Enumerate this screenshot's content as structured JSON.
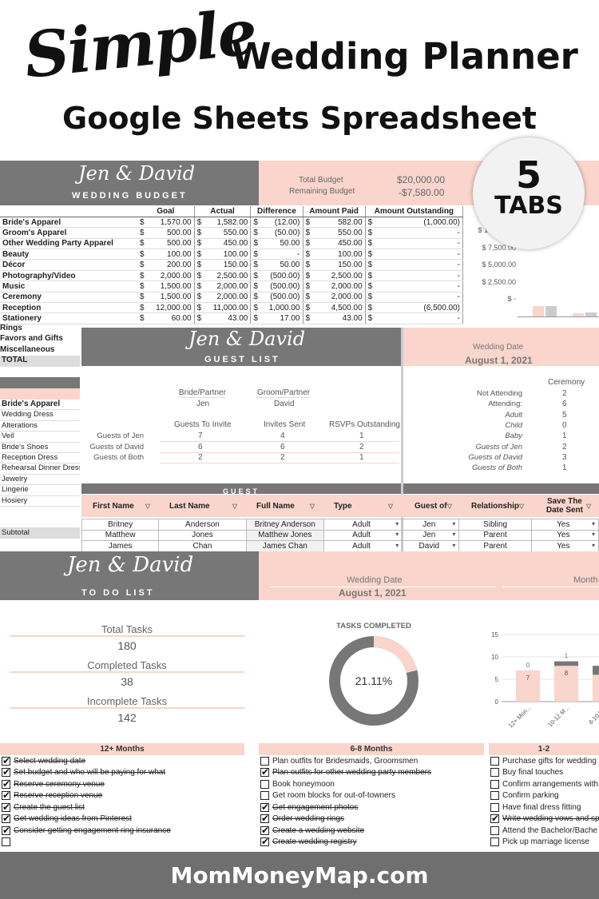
{
  "header": {
    "simple": "Simple",
    "title": "Wedding Planner",
    "subtitle": "Google Sheets Spreadsheet",
    "badge_number": "5",
    "badge_text": "TABS"
  },
  "budget": {
    "names": "Jen & David",
    "sheet_title": "WEDDING BUDGET",
    "total_budget_label": "Total Budget",
    "total_budget_value": "$20,000.00",
    "remaining_label": "Remaining Budget",
    "remaining_value": "-$7,580.00",
    "columns": [
      "Goal",
      "Actual",
      "Difference",
      "Amount Paid",
      "Amount Outstanding"
    ],
    "rows": [
      {
        "cat": "Bride's Apparel",
        "goal": "1,570.00",
        "actual": "1,582.00",
        "diff": "(12.00)",
        "paid": "582.00",
        "out": "(1,000.00)"
      },
      {
        "cat": "Groom's Apparel",
        "goal": "500.00",
        "actual": "550.00",
        "diff": "(50.00)",
        "paid": "550.00",
        "out": "-"
      },
      {
        "cat": "Other Wedding Party Apparel",
        "goal": "500.00",
        "actual": "450.00",
        "diff": "50.00",
        "paid": "450.00",
        "out": "-"
      },
      {
        "cat": "Beauty",
        "goal": "100.00",
        "actual": "100.00",
        "diff": "-",
        "paid": "100.00",
        "out": "-"
      },
      {
        "cat": "Décor",
        "goal": "200.00",
        "actual": "150.00",
        "diff": "50.00",
        "paid": "150.00",
        "out": "-"
      },
      {
        "cat": "Photography/Video",
        "goal": "2,000.00",
        "actual": "2,500.00",
        "diff": "(500.00)",
        "paid": "2,500.00",
        "out": "-"
      },
      {
        "cat": "Music",
        "goal": "1,500.00",
        "actual": "2,000.00",
        "diff": "(500.00)",
        "paid": "2,000.00",
        "out": "-"
      },
      {
        "cat": "Ceremony",
        "goal": "1,500.00",
        "actual": "2,000.00",
        "diff": "(500.00)",
        "paid": "2,000.00",
        "out": "-"
      },
      {
        "cat": "Reception",
        "goal": "12,000.00",
        "actual": "11,000.00",
        "diff": "1,000.00",
        "paid": "4,500.00",
        "out": "(6,500.00)"
      },
      {
        "cat": "Stationery",
        "goal": "60.00",
        "actual": "43.00",
        "diff": "17.00",
        "paid": "43.00",
        "out": "-"
      }
    ],
    "extra_rows": [
      "Rings",
      "Favors and Gifts",
      "Miscellaneous",
      "TOTAL"
    ],
    "chart_ticks": [
      "$ 10,000.00",
      "$ 7,500.00",
      "$ 5,000.00",
      "$ 2,500.00",
      "$ -"
    ]
  },
  "apparel_sidebar": {
    "title": "Bride's Apparel",
    "items": [
      "Wedding Dress",
      "Alterations",
      "Veil",
      "Bride's Shoes",
      "Reception Dress",
      "Rehearsal Dinner Dress",
      "Jewelry",
      "Lingerie",
      "Hosiery"
    ],
    "subtotal": "Subtotal"
  },
  "guest": {
    "names": "Jen & David",
    "sheet_title": "GUEST LIST",
    "wedding_date_label": "Wedding Date",
    "wedding_date": "August 1, 2021",
    "bride_label": "Bride/Partner",
    "groom_label": "Groom/Partner",
    "bride_name": "Jen",
    "groom_name": "David",
    "stat_headers": [
      "Guests To Invite",
      "Invites Sent",
      "RSVPs Outstanding"
    ],
    "stat_rows": [
      {
        "label": "Guests of Jen",
        "a": "7",
        "b": "4",
        "c": "1"
      },
      {
        "label": "Guests of David",
        "a": "6",
        "b": "6",
        "c": "2"
      },
      {
        "label": "Guests of Both",
        "a": "2",
        "b": "2",
        "c": "1"
      }
    ],
    "ceremony_label": "Ceremony",
    "attendance": [
      {
        "label": "Not Attending",
        "value": "2",
        "style": "plain"
      },
      {
        "label": "Attending:",
        "value": "6",
        "style": "plain"
      },
      {
        "label": "Adult",
        "value": "5",
        "style": "italic"
      },
      {
        "label": "Child",
        "value": "0",
        "style": "italic"
      },
      {
        "label": "Baby",
        "value": "1",
        "style": "italic"
      },
      {
        "label": "Guests of Jen",
        "value": "2",
        "style": "italic"
      },
      {
        "label": "Guests of David",
        "value": "3",
        "style": "italic"
      },
      {
        "label": "Guests of Both",
        "value": "1",
        "style": "italic"
      }
    ],
    "table_title": "GUEST",
    "columns": [
      "First Name",
      "Last Name",
      "Full Name",
      "Type",
      "Guest of",
      "Relationship",
      "Save The Date Sent"
    ],
    "rows": [
      [
        "Britney",
        "Anderson",
        "Britney Anderson",
        "Adult",
        "Jen",
        "Sibling",
        "Yes"
      ],
      [
        "Matthew",
        "Jones",
        "Matthew Jones",
        "Adult",
        "Jen",
        "Parent",
        "Yes"
      ],
      [
        "James",
        "Chan",
        "James Chan",
        "Adult",
        "David",
        "Parent",
        "Yes"
      ]
    ]
  },
  "todo": {
    "names": "Jen & David",
    "sheet_title": "TO DO LIST",
    "wedding_date_label": "Wedding Date",
    "wedding_date": "August 1, 2021",
    "month_label": "Month",
    "total_label": "Total Tasks",
    "total_value": "180",
    "completed_label": "Completed Tasks",
    "completed_value": "38",
    "incomplete_label": "Incomplete Tasks",
    "incomplete_value": "142",
    "donut_title": "TASKS COMPLETED",
    "donut_value": "21.11%",
    "donut_fraction": 0.2111,
    "colors": {
      "pink": "#f9d5cc",
      "grey": "#777777"
    },
    "groups": [
      {
        "title": "12+ Months",
        "items": [
          {
            "t": "Select wedding date",
            "d": true
          },
          {
            "t": "Set budget and who will be paying for what",
            "d": true
          },
          {
            "t": "Reserve ceremony venue",
            "d": true
          },
          {
            "t": "Reserve reception venue",
            "d": true
          },
          {
            "t": "Create the guest list",
            "d": true
          },
          {
            "t": "Get wedding ideas from Pinterest",
            "d": true
          },
          {
            "t": "Consider getting engagement ring insurance",
            "d": true
          },
          {
            "t": "",
            "d": false
          }
        ]
      },
      {
        "title": "6-8 Months",
        "items": [
          {
            "t": "Plan outfits for Bridesmaids, Groomsmen",
            "d": false
          },
          {
            "t": "Plan outfits for other wedding party members",
            "d": true
          },
          {
            "t": "Book honeymoon",
            "d": false
          },
          {
            "t": "Get room blocks for out-of-towners",
            "d": false
          },
          {
            "t": "Get engagement photos",
            "d": true
          },
          {
            "t": "Order wedding rings",
            "d": true
          },
          {
            "t": "Create a wedding website",
            "d": true
          },
          {
            "t": "Create wedding registry",
            "d": true
          }
        ]
      },
      {
        "title": "1-2",
        "items": [
          {
            "t": "Purchase gifts for wedding",
            "d": false
          },
          {
            "t": "Buy final touches",
            "d": false
          },
          {
            "t": "Confirm arrangements with",
            "d": false
          },
          {
            "t": "Confirm parking",
            "d": false
          },
          {
            "t": "Have final dress fitting",
            "d": false
          },
          {
            "t": "Write wedding vows and sp",
            "d": true
          },
          {
            "t": "Attend the Bachelor/Bache",
            "d": false
          },
          {
            "t": "Pick up marriage license",
            "d": false
          }
        ]
      }
    ]
  },
  "chart_data": {
    "type": "bar",
    "categories": [
      "12+ Mon...",
      "10-12 M...",
      "8-10 M..."
    ],
    "series": [
      {
        "values": [
          7,
          8,
          6
        ]
      },
      {
        "values": [
          0,
          1,
          2
        ]
      }
    ],
    "data_labels": [
      "7",
      "8",
      "0",
      "1"
    ],
    "ylim": [
      0,
      15
    ],
    "yticks": [
      "15",
      "10",
      "5",
      "0"
    ]
  },
  "footer": {
    "site": "MomMoneyMap.com"
  }
}
